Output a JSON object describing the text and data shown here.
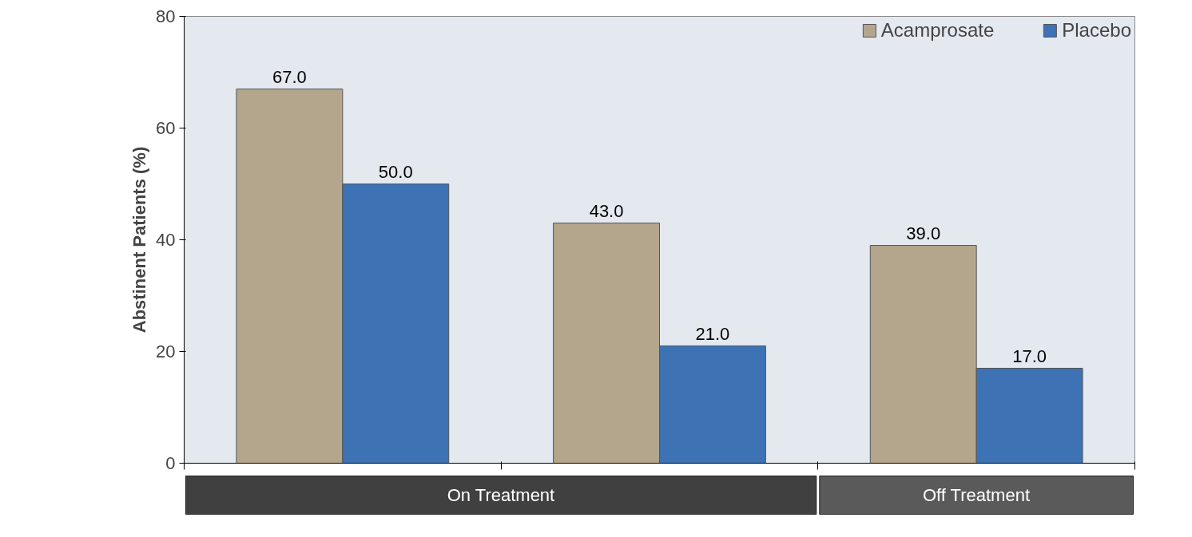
{
  "chart_data": {
    "type": "bar",
    "ylabel": "Abstinent Patients (%)",
    "categories": [
      null,
      null,
      null
    ],
    "series": [
      {
        "name": "Acamprosate",
        "color": "#b3a68c",
        "values": [
          67,
          43,
          39
        ],
        "value_labels": [
          "67.0",
          "43.0",
          "39.0"
        ]
      },
      {
        "name": "Placebo",
        "color": "#3d72b4",
        "values": [
          50,
          21,
          17
        ],
        "value_labels": [
          "50.0",
          "21.0",
          "17.0"
        ]
      }
    ],
    "ylim": [
      0,
      80
    ],
    "yticks": [
      0,
      20,
      40,
      60,
      80
    ],
    "grid": false,
    "legend": "top right",
    "annotations": [
      "On Treatment",
      "Off Treatment"
    ]
  }
}
